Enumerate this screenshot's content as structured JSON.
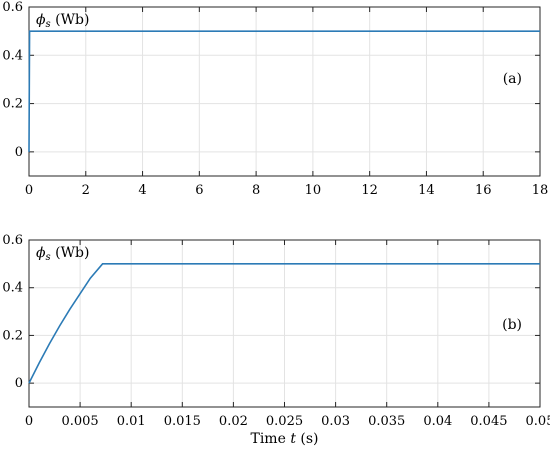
{
  "chart_data": [
    {
      "type": "line",
      "panel": "(a)",
      "ylabel_sym": "ϕ",
      "ylabel_sub": "s",
      "ylabel_unit": " (Wb)",
      "xlabel": "",
      "xlim": [
        0,
        18
      ],
      "ylim": [
        -0.1,
        0.6
      ],
      "xticks": [
        0,
        2,
        4,
        6,
        8,
        10,
        12,
        14,
        16,
        18
      ],
      "xtick_labels": [
        "0",
        "2",
        "4",
        "6",
        "8",
        "10",
        "12",
        "14",
        "16",
        "18"
      ],
      "yticks": [
        0,
        0.2,
        0.4,
        0.6
      ],
      "ytick_labels": [
        "0",
        "0.2",
        "0.4",
        "0.6"
      ],
      "grid": true,
      "color": "#2c7bb6",
      "series": [
        {
          "x": [
            0,
            0.01,
            0.02,
            18
          ],
          "y": [
            0,
            0.25,
            0.5,
            0.5
          ]
        }
      ]
    },
    {
      "type": "line",
      "panel": "(b)",
      "ylabel_sym": "ϕ",
      "ylabel_sub": "s",
      "ylabel_unit": " (Wb)",
      "xlabel_pre": "Time ",
      "xlabel_var": "t",
      "xlabel_post": " (s)",
      "xlim": [
        0,
        0.05
      ],
      "ylim": [
        -0.1,
        0.6
      ],
      "xticks": [
        0,
        0.005,
        0.01,
        0.015,
        0.02,
        0.025,
        0.03,
        0.035,
        0.04,
        0.045,
        0.05
      ],
      "xtick_labels": [
        "0",
        "0.005",
        "0.01",
        "0.015",
        "0.02",
        "0.025",
        "0.03",
        "0.035",
        "0.04",
        "0.045",
        "0.05"
      ],
      "yticks": [
        0,
        0.2,
        0.4,
        0.6
      ],
      "ytick_labels": [
        "0",
        "0.2",
        "0.4",
        "0.6"
      ],
      "grid": true,
      "color": "#2c7bb6",
      "series": [
        {
          "x": [
            0,
            0.001,
            0.002,
            0.003,
            0.004,
            0.005,
            0.006,
            0.0072,
            0.05
          ],
          "y": [
            0.0,
            0.085,
            0.165,
            0.24,
            0.31,
            0.375,
            0.44,
            0.5,
            0.5
          ]
        }
      ]
    }
  ]
}
